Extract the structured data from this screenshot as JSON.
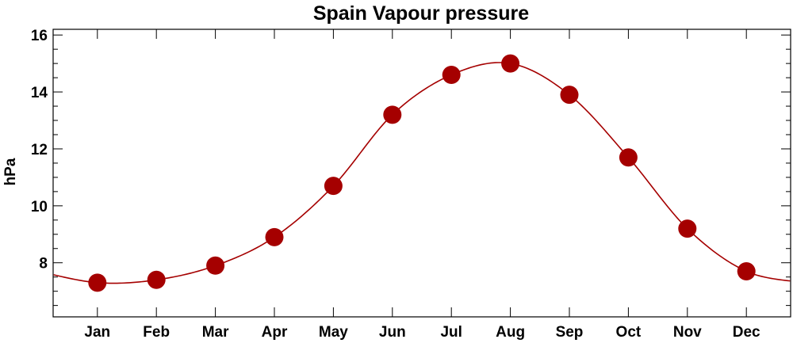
{
  "chart_data": {
    "type": "line",
    "title": "Spain Vapour pressure",
    "xlabel": "",
    "ylabel": "hPa",
    "categories": [
      "Jan",
      "Feb",
      "Mar",
      "Apr",
      "May",
      "Jun",
      "Jul",
      "Aug",
      "Sep",
      "Oct",
      "Nov",
      "Dec"
    ],
    "series": [
      {
        "values": [
          7.3,
          7.4,
          7.9,
          8.9,
          10.7,
          13.2,
          14.6,
          15.0,
          13.9,
          11.7,
          9.2,
          7.7
        ]
      }
    ],
    "ylim": [
      6.1,
      16.2
    ],
    "yticks": [
      8,
      10,
      12,
      14,
      16
    ],
    "grid": false,
    "colors": {
      "line": "#a50000",
      "marker": "#a50000",
      "axis": "#000000"
    }
  }
}
